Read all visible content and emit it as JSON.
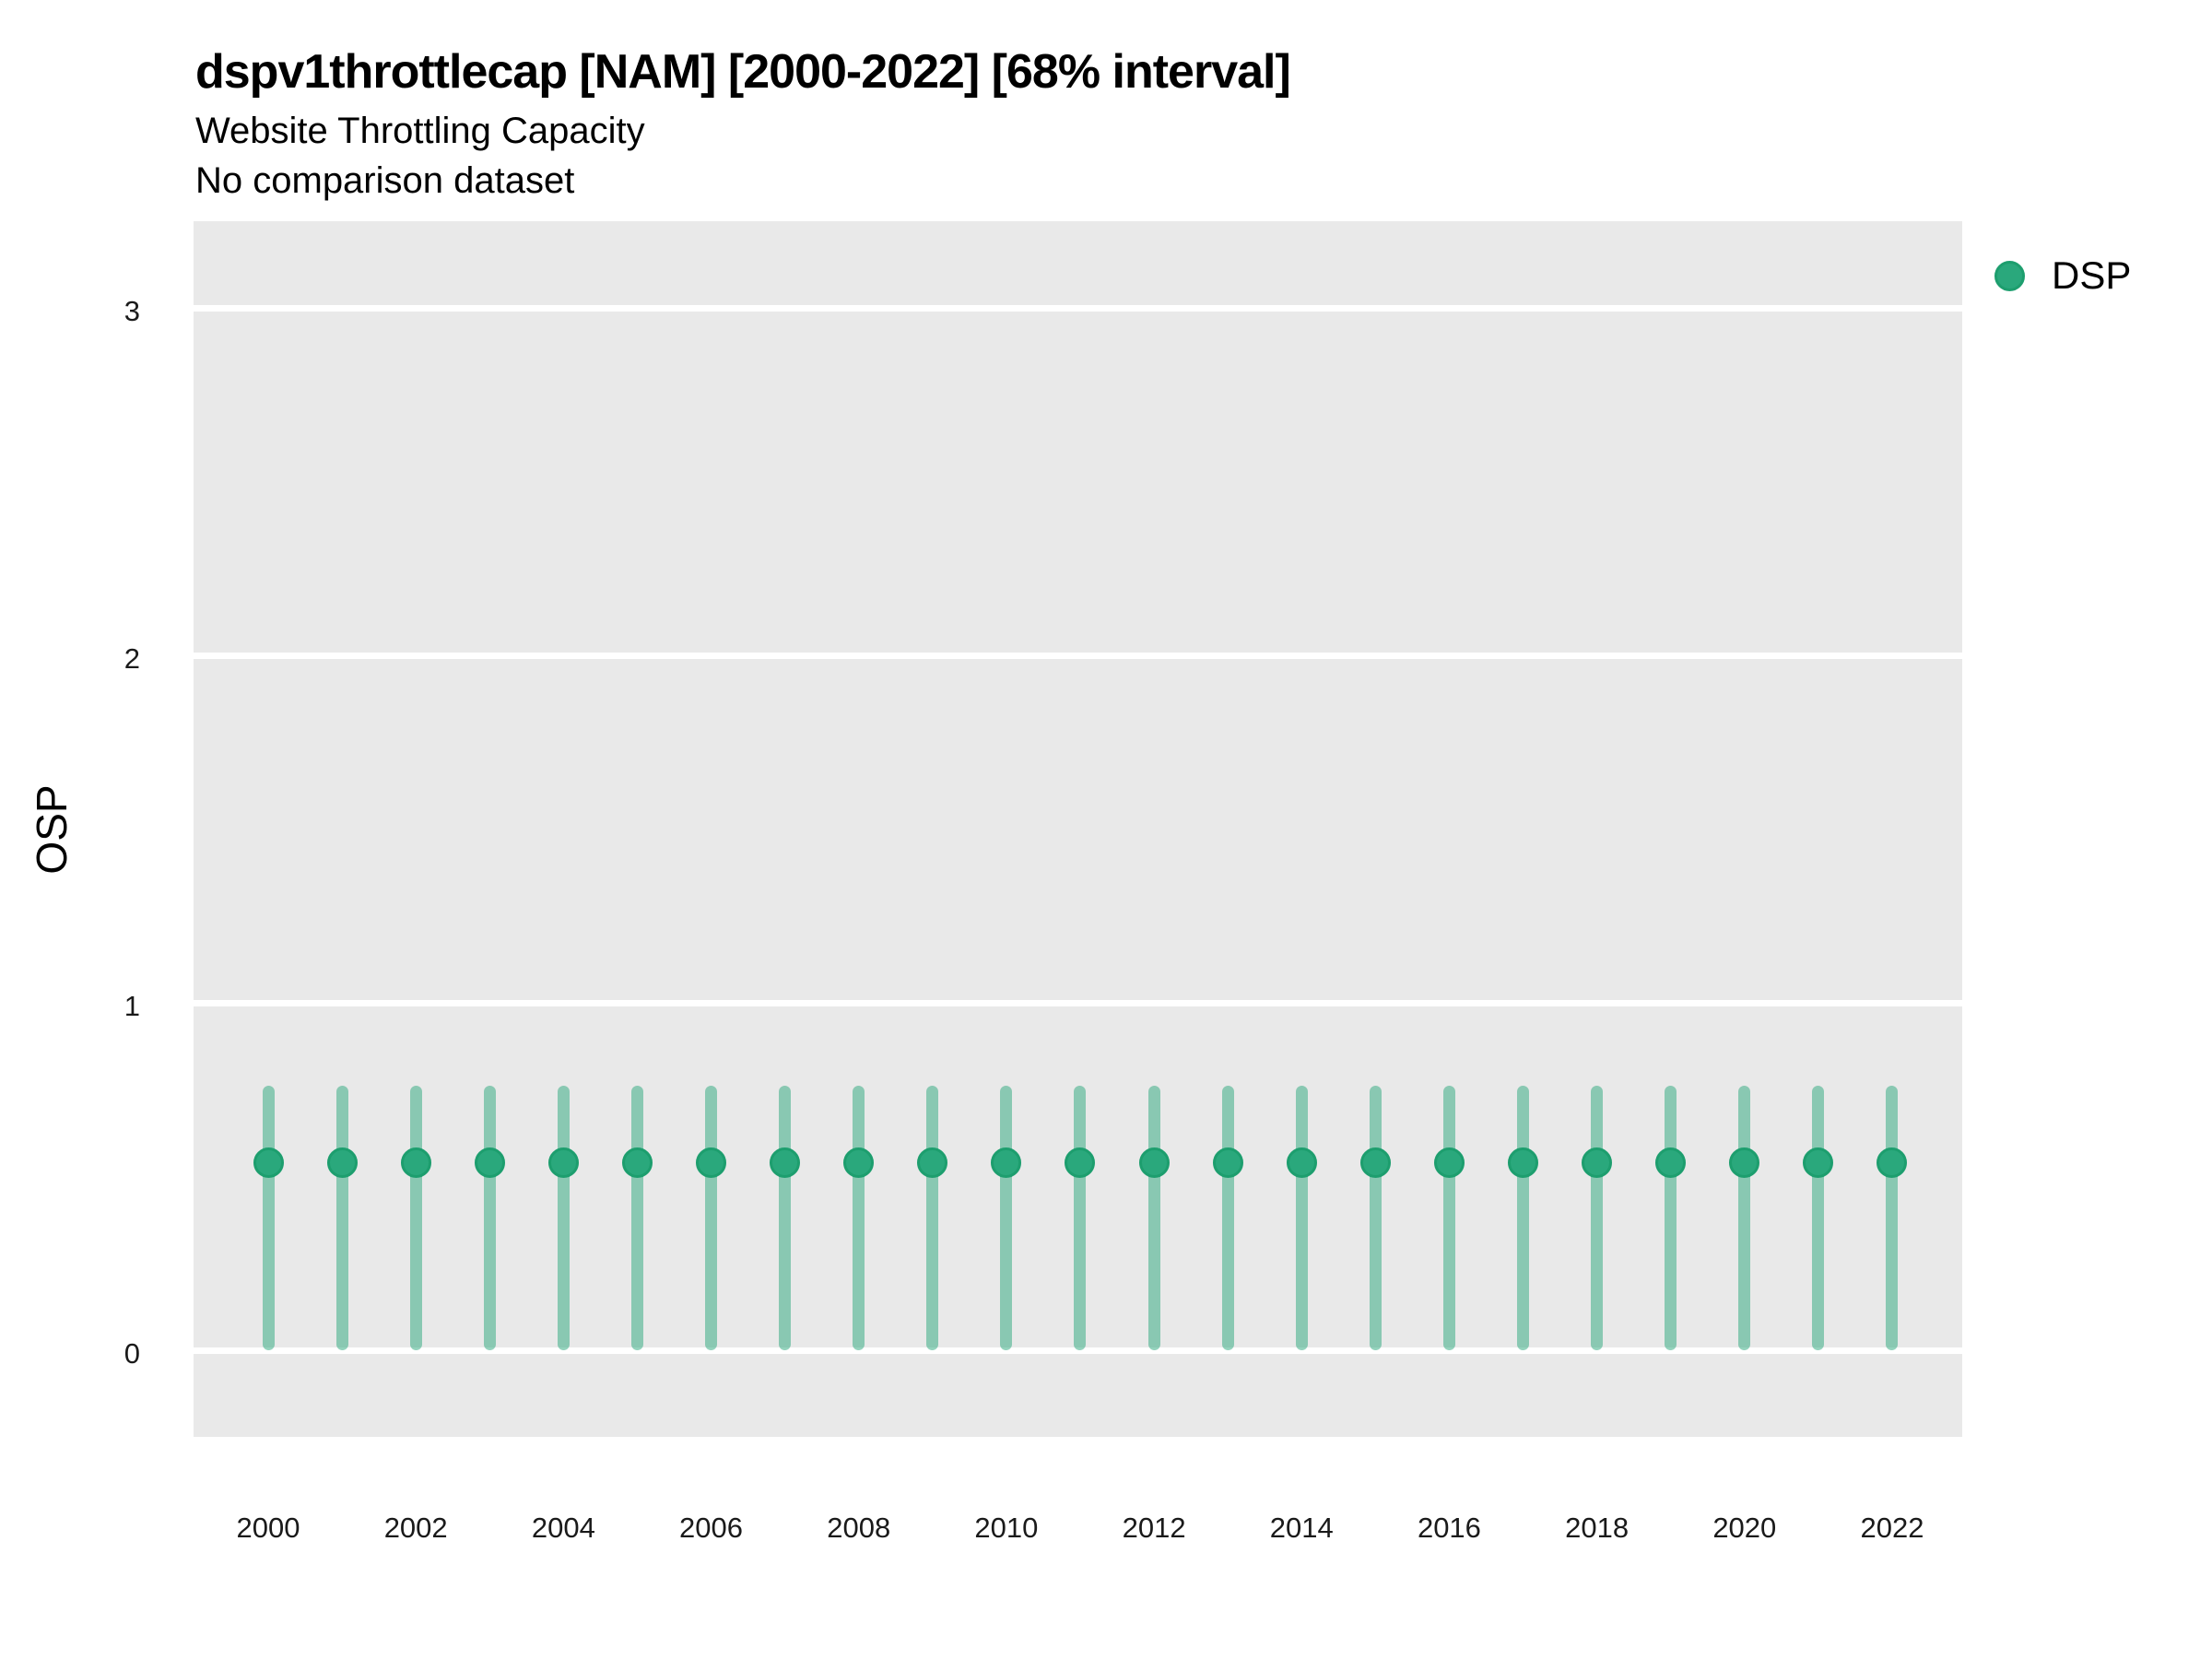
{
  "header": {
    "title": "dspv1throttlecap [NAM] [2000-2022] [68% interval]",
    "subtitle": "Website Throttling Capacity",
    "note": "No comparison dataset"
  },
  "legend": {
    "position": "right-top",
    "entries": [
      {
        "label": "DSP",
        "marker": "circle-icon",
        "color": "#2aa87c"
      }
    ]
  },
  "colors": {
    "panel_background": "#e9e9e9",
    "gridline": "#ffffff",
    "point_fill": "#2aa87c",
    "point_ring": "#1d9e6e",
    "interval_bar": "rgba(42,168,124,0.5)",
    "text": "#000000",
    "tick_text": "#1a1a1a"
  },
  "chart_data": {
    "type": "scatter",
    "subtype": "pointrange-errorbar",
    "title": "dspv1throttlecap [NAM] [2000-2022] [68% interval]",
    "subtitle": "Website Throttling Capacity",
    "annotation": "No comparison dataset",
    "xlabel": "",
    "ylabel": "OSP",
    "interval_label": "68% interval",
    "region": "NAM",
    "x": [
      2000,
      2001,
      2002,
      2003,
      2004,
      2005,
      2006,
      2007,
      2008,
      2009,
      2010,
      2011,
      2012,
      2013,
      2014,
      2015,
      2016,
      2017,
      2018,
      2019,
      2020,
      2021,
      2022
    ],
    "series": [
      {
        "name": "DSP",
        "color": "#2aa87c",
        "y": [
          0.54,
          0.54,
          0.54,
          0.54,
          0.54,
          0.54,
          0.54,
          0.54,
          0.54,
          0.54,
          0.54,
          0.54,
          0.54,
          0.54,
          0.54,
          0.54,
          0.54,
          0.54,
          0.54,
          0.54,
          0.54,
          0.54,
          0.54
        ],
        "lo": [
          0.0,
          0.0,
          0.0,
          0.0,
          0.0,
          0.0,
          0.0,
          0.0,
          0.0,
          0.0,
          0.0,
          0.0,
          0.0,
          0.0,
          0.0,
          0.0,
          0.0,
          0.0,
          0.0,
          0.0,
          0.0,
          0.0,
          0.0
        ],
        "hi": [
          0.76,
          0.76,
          0.76,
          0.76,
          0.76,
          0.76,
          0.76,
          0.76,
          0.76,
          0.76,
          0.76,
          0.76,
          0.76,
          0.76,
          0.76,
          0.76,
          0.76,
          0.76,
          0.76,
          0.76,
          0.76,
          0.76,
          0.76
        ]
      }
    ],
    "x_tick_labels": [
      "2000",
      "2002",
      "2004",
      "2006",
      "2008",
      "2010",
      "2012",
      "2014",
      "2016",
      "2018",
      "2020",
      "2022"
    ],
    "y_tick_labels": [
      "0",
      "1",
      "2",
      "3"
    ],
    "y_ticks": [
      0,
      1,
      2,
      3
    ],
    "xlim": [
      1999,
      2023
    ],
    "ylim": [
      -0.25,
      3.25
    ],
    "grid": "major horizontal white lines on gray panel",
    "legend_position": "right-top"
  }
}
